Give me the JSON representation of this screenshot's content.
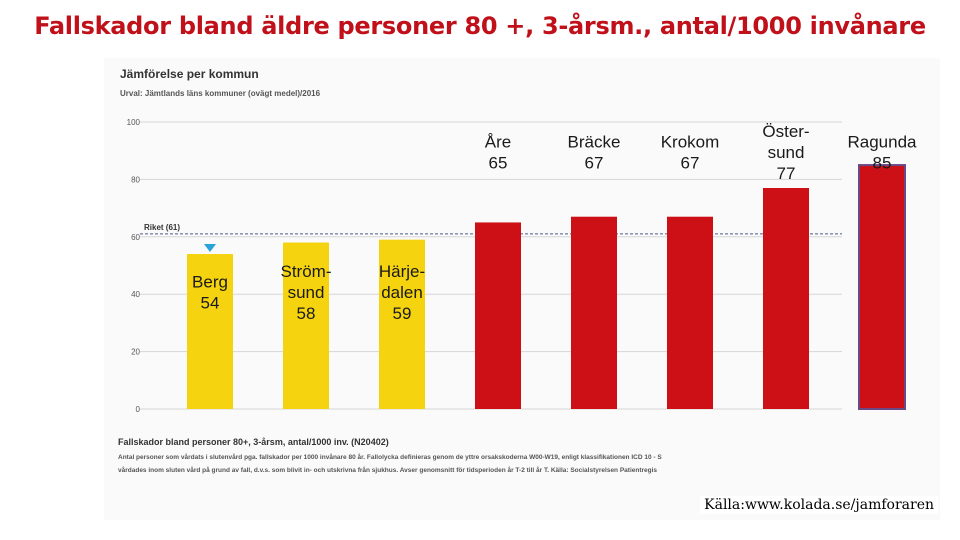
{
  "slide_title": "Fallskador bland äldre personer 80 +, 3-årsm., antal/1000 invånare",
  "panel": {
    "heading": "Jämförelse per kommun",
    "subheading": "Urval: Jämtlands läns kommuner (ovägt medel)/2016",
    "footer_title": "Fallskador bland personer 80+, 3-årsm, antal/1000 inv. (N20402)",
    "footer_lines": [
      "Antal personer som vårdats i slutenvård pga. fallskador per 1000 invånare 80 år. Fallolycka definieras genom de yttre orsakskoderna W00-W19, enligt klassifikationen ICD 10 - S",
      "vårdades inom sluten vård på grund av fall, d.v.s. som blivit in- och utskrivna från sjukhus. Avser genomsnitt för tidsperioden år T-2 till år T. Källa: Socialstyrelsen Patientregis"
    ]
  },
  "source_text": "Källa:www.kolada.se/jamforaren",
  "colors": {
    "title": "#c0101a",
    "yellow": "#f5d40f",
    "red": "#cc1016",
    "marker": "#29a3d9"
  },
  "chart_data": {
    "type": "bar",
    "ylim": [
      0,
      100
    ],
    "yticks": [
      0,
      20,
      40,
      60,
      80,
      100
    ],
    "grid": true,
    "reference_line": {
      "label": "Riket (61)",
      "value": 61
    },
    "bars": [
      {
        "label": [
          "Berg",
          "54"
        ],
        "value": 54,
        "color": "yellow",
        "marker": true
      },
      {
        "label": [
          "Ström-",
          "sund",
          "58"
        ],
        "value": 58,
        "color": "yellow"
      },
      {
        "label": [
          "Härje-",
          "dalen",
          "59"
        ],
        "value": 59,
        "color": "yellow"
      },
      {
        "label": [
          "Åre",
          "65"
        ],
        "value": 65,
        "color": "red"
      },
      {
        "label": [
          "Bräcke",
          "67"
        ],
        "value": 67,
        "color": "red"
      },
      {
        "label": [
          "Krokom",
          "67"
        ],
        "value": 67,
        "color": "red"
      },
      {
        "label": [
          "Öster-",
          "sund",
          "77"
        ],
        "value": 77,
        "color": "red"
      },
      {
        "label": [
          "Ragunda",
          "85"
        ],
        "value": 85,
        "color": "red",
        "outlined": true
      }
    ]
  }
}
